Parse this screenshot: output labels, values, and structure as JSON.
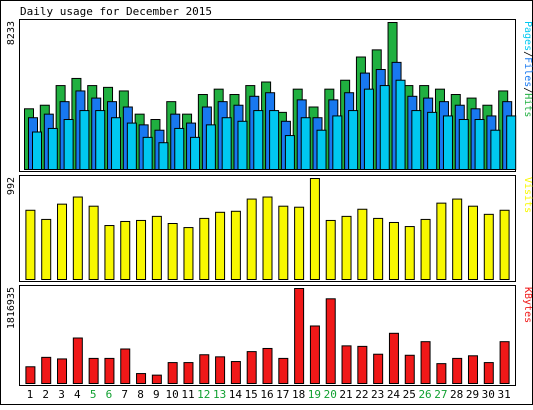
{
  "chart_data": [
    {
      "type": "bar",
      "title": "Daily usage for December 2015",
      "categories": [
        "1",
        "2",
        "3",
        "4",
        "5",
        "6",
        "7",
        "8",
        "9",
        "10",
        "11",
        "12",
        "13",
        "14",
        "15",
        "16",
        "17",
        "18",
        "19",
        "20",
        "21",
        "22",
        "23",
        "24",
        "25",
        "26",
        "27",
        "28",
        "29",
        "30",
        "31"
      ],
      "weekend_days": [
        "5",
        "6",
        "12",
        "13",
        "19",
        "20",
        "26",
        "27"
      ],
      "ylabel_max": "8233",
      "ylim": [
        0,
        8233
      ],
      "series": [
        {
          "name": "Hits",
          "color": "#20b040",
          "values": [
            3400,
            3600,
            4700,
            5100,
            4700,
            4600,
            4400,
            3100,
            2800,
            3800,
            3100,
            4200,
            4500,
            4200,
            4700,
            4900,
            3200,
            4500,
            3500,
            4500,
            5000,
            6300,
            6700,
            8233,
            4700,
            4700,
            4500,
            4200,
            4000,
            3600,
            4400
          ]
        },
        {
          "name": "Files",
          "color": "#1878f0",
          "values": [
            2900,
            3100,
            3800,
            4400,
            4000,
            3800,
            3500,
            2500,
            2200,
            3100,
            2600,
            3500,
            3800,
            3600,
            4100,
            4300,
            2700,
            3900,
            2900,
            3900,
            4300,
            5400,
            5600,
            6000,
            4100,
            4000,
            3800,
            3600,
            3400,
            3000,
            3800
          ]
        },
        {
          "name": "Pages",
          "color": "#00c8f0",
          "values": [
            2100,
            2300,
            2800,
            3300,
            3300,
            2900,
            2600,
            1800,
            1500,
            2300,
            1800,
            2500,
            2900,
            2700,
            3300,
            3300,
            1900,
            2900,
            2200,
            3000,
            3300,
            4500,
            4700,
            5000,
            3300,
            3200,
            3000,
            2800,
            2800,
            2200,
            3000
          ]
        }
      ],
      "legend": [
        {
          "label": "Pages",
          "color": "#00c8f0"
        },
        {
          "label": "Files",
          "color": "#1878f0"
        },
        {
          "label": "Hits",
          "color": "#20b040"
        }
      ]
    },
    {
      "type": "bar",
      "categories": [
        "1",
        "2",
        "3",
        "4",
        "5",
        "6",
        "7",
        "8",
        "9",
        "10",
        "11",
        "12",
        "13",
        "14",
        "15",
        "16",
        "17",
        "18",
        "19",
        "20",
        "21",
        "22",
        "23",
        "24",
        "25",
        "26",
        "27",
        "28",
        "29",
        "30",
        "31"
      ],
      "ylabel_max": "992",
      "ylim": [
        0,
        992
      ],
      "series": [
        {
          "name": "Visits",
          "color": "#f8f800",
          "values": [
            680,
            590,
            740,
            810,
            720,
            530,
            570,
            580,
            620,
            550,
            510,
            600,
            660,
            670,
            790,
            810,
            720,
            710,
            992,
            580,
            620,
            690,
            600,
            560,
            520,
            590,
            750,
            790,
            720,
            640,
            680
          ]
        }
      ],
      "legend": [
        {
          "label": "Visits",
          "color": "#f8f800"
        }
      ]
    },
    {
      "type": "bar",
      "categories": [
        "1",
        "2",
        "3",
        "4",
        "5",
        "6",
        "7",
        "8",
        "9",
        "10",
        "11",
        "12",
        "13",
        "14",
        "15",
        "16",
        "17",
        "18",
        "19",
        "20",
        "21",
        "22",
        "23",
        "24",
        "25",
        "26",
        "27",
        "28",
        "29",
        "30",
        "31"
      ],
      "ylabel_max": "1816935",
      "ylim": [
        0,
        1816935
      ],
      "series": [
        {
          "name": "KBytes",
          "color": "#f01818",
          "values": [
            320000,
            500000,
            470000,
            870000,
            480000,
            480000,
            660000,
            190000,
            160000,
            400000,
            400000,
            550000,
            510000,
            420000,
            610000,
            670000,
            480000,
            1816935,
            1100000,
            1620000,
            720000,
            710000,
            560000,
            960000,
            540000,
            800000,
            380000,
            480000,
            530000,
            400000,
            800000
          ]
        }
      ],
      "legend": [
        {
          "label": "KBytes",
          "color": "#f01818"
        }
      ]
    }
  ]
}
